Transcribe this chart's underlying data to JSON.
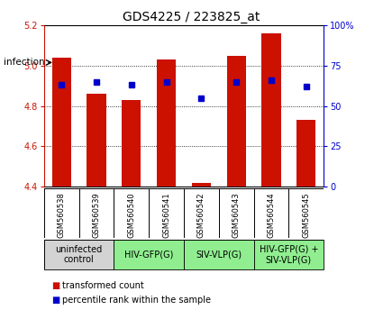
{
  "title": "GDS4225 / 223825_at",
  "samples": [
    "GSM560538",
    "GSM560539",
    "GSM560540",
    "GSM560541",
    "GSM560542",
    "GSM560543",
    "GSM560544",
    "GSM560545"
  ],
  "bar_values": [
    5.04,
    4.86,
    4.83,
    5.03,
    4.42,
    5.05,
    5.16,
    4.73
  ],
  "percentile_values": [
    63,
    65,
    63,
    65,
    55,
    65,
    66,
    62
  ],
  "y_min": 4.4,
  "y_max": 5.2,
  "y_ticks": [
    4.4,
    4.6,
    4.8,
    5.0,
    5.2
  ],
  "y2_ticks": [
    0,
    25,
    50,
    75,
    100
  ],
  "bar_color": "#cc1100",
  "point_color": "#0000cc",
  "bar_bottom": 4.4,
  "groups": [
    {
      "label": "uninfected\ncontrol",
      "start": 0,
      "end": 2,
      "color": "#d3d3d3"
    },
    {
      "label": "HIV-GFP(G)",
      "start": 2,
      "end": 4,
      "color": "#90ee90"
    },
    {
      "label": "SIV-VLP(G)",
      "start": 4,
      "end": 6,
      "color": "#90ee90"
    },
    {
      "label": "HIV-GFP(G) +\nSIV-VLP(G)",
      "start": 6,
      "end": 8,
      "color": "#90ee90"
    }
  ],
  "infection_label": "infection",
  "legend_items": [
    {
      "color": "#cc1100",
      "label": "transformed count"
    },
    {
      "color": "#0000cc",
      "label": "percentile rank within the sample"
    }
  ],
  "title_fontsize": 10,
  "tick_fontsize": 7,
  "sample_label_fontsize": 6,
  "group_label_fontsize": 7,
  "legend_fontsize": 7
}
